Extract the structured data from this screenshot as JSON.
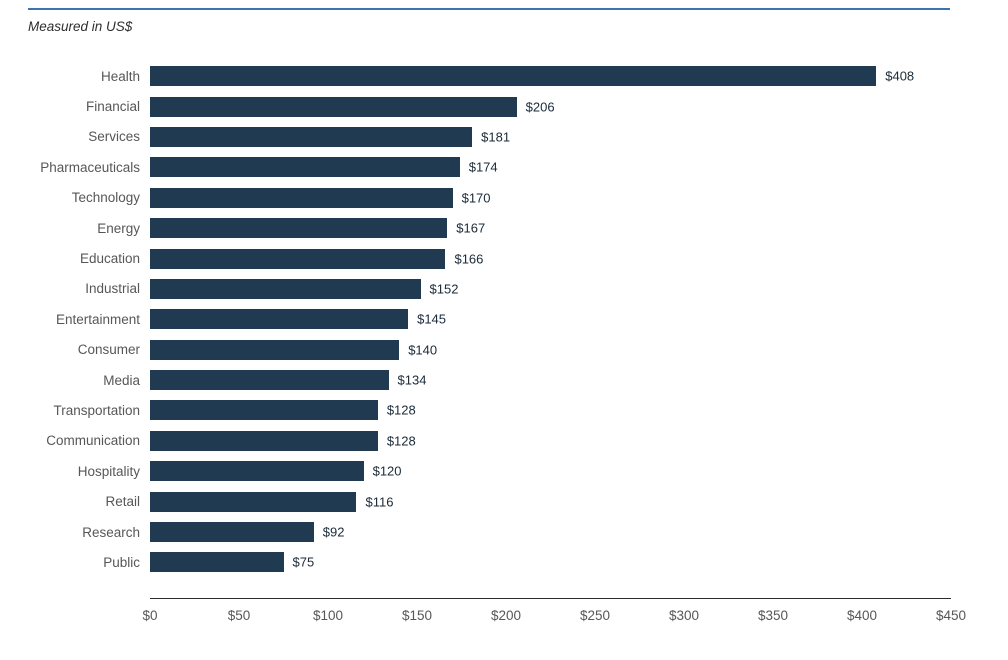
{
  "chart_data": {
    "type": "bar",
    "orientation": "horizontal",
    "note": "Measured in US$",
    "categories": [
      "Health",
      "Financial",
      "Services",
      "Pharmaceuticals",
      "Technology",
      "Energy",
      "Education",
      "Industrial",
      "Entertainment",
      "Consumer",
      "Media",
      "Transportation",
      "Communication",
      "Hospitality",
      "Retail",
      "Research",
      "Public"
    ],
    "values": [
      408,
      206,
      181,
      174,
      170,
      167,
      166,
      152,
      145,
      140,
      134,
      128,
      128,
      120,
      116,
      92,
      75
    ],
    "value_prefix": "$",
    "xlim": [
      0,
      450
    ],
    "x_ticks": [
      0,
      50,
      100,
      150,
      200,
      250,
      300,
      350,
      400,
      450
    ],
    "x_tick_labels": [
      "$0",
      "$50",
      "$100",
      "$150",
      "$200",
      "$250",
      "$300",
      "$350",
      "$400",
      "$450"
    ],
    "grid": "off",
    "legend": "none",
    "colors": {
      "bar": "#203a52",
      "top_rule": "#3c74ae",
      "category_label": "#575757",
      "value_label": "#1b2a38",
      "axis_line": "#2b2b2b",
      "tick_label": "#575757",
      "note_text": "#2e2e2e",
      "background": "#ffffff"
    }
  }
}
